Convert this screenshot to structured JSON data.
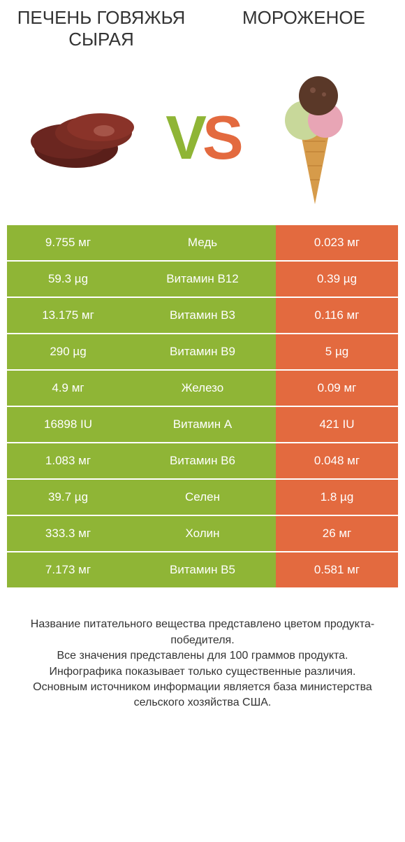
{
  "colors": {
    "green": "#8fb536",
    "orange": "#e36a3f",
    "white": "#ffffff"
  },
  "header": {
    "left_title": "ПЕЧЕНЬ ГОВЯЖЬЯ СЫРАЯ",
    "right_title": "МОРОЖЕНОЕ",
    "vs_v": "V",
    "vs_s": "S"
  },
  "rows": [
    {
      "left": "9.755 мг",
      "mid": "Медь",
      "right": "0.023 мг",
      "left_bg": "green",
      "mid_bg": "green",
      "right_bg": "orange"
    },
    {
      "left": "59.3 µg",
      "mid": "Витамин B12",
      "right": "0.39 µg",
      "left_bg": "green",
      "mid_bg": "green",
      "right_bg": "orange"
    },
    {
      "left": "13.175 мг",
      "mid": "Витамин B3",
      "right": "0.116 мг",
      "left_bg": "green",
      "mid_bg": "green",
      "right_bg": "orange"
    },
    {
      "left": "290 µg",
      "mid": "Витамин B9",
      "right": "5 µg",
      "left_bg": "green",
      "mid_bg": "green",
      "right_bg": "orange"
    },
    {
      "left": "4.9 мг",
      "mid": "Железо",
      "right": "0.09 мг",
      "left_bg": "green",
      "mid_bg": "green",
      "right_bg": "orange"
    },
    {
      "left": "16898 IU",
      "mid": "Витамин A",
      "right": "421 IU",
      "left_bg": "green",
      "mid_bg": "green",
      "right_bg": "orange"
    },
    {
      "left": "1.083 мг",
      "mid": "Витамин B6",
      "right": "0.048 мг",
      "left_bg": "green",
      "mid_bg": "green",
      "right_bg": "orange"
    },
    {
      "left": "39.7 µg",
      "mid": "Селен",
      "right": "1.8 µg",
      "left_bg": "green",
      "mid_bg": "green",
      "right_bg": "orange"
    },
    {
      "left": "333.3 мг",
      "mid": "Холин",
      "right": "26 мг",
      "left_bg": "green",
      "mid_bg": "green",
      "right_bg": "orange"
    },
    {
      "left": "7.173 мг",
      "mid": "Витамин B5",
      "right": "0.581 мг",
      "left_bg": "green",
      "mid_bg": "green",
      "right_bg": "orange"
    }
  ],
  "footer": {
    "line1": "Название питательного вещества представлено цветом продукта-победителя.",
    "line2": "Все значения представлены для 100 граммов продукта.",
    "line3": "Инфографика показывает только существенные различия.",
    "line4": "Основным источником информации является база министерства сельского хозяйства США."
  }
}
